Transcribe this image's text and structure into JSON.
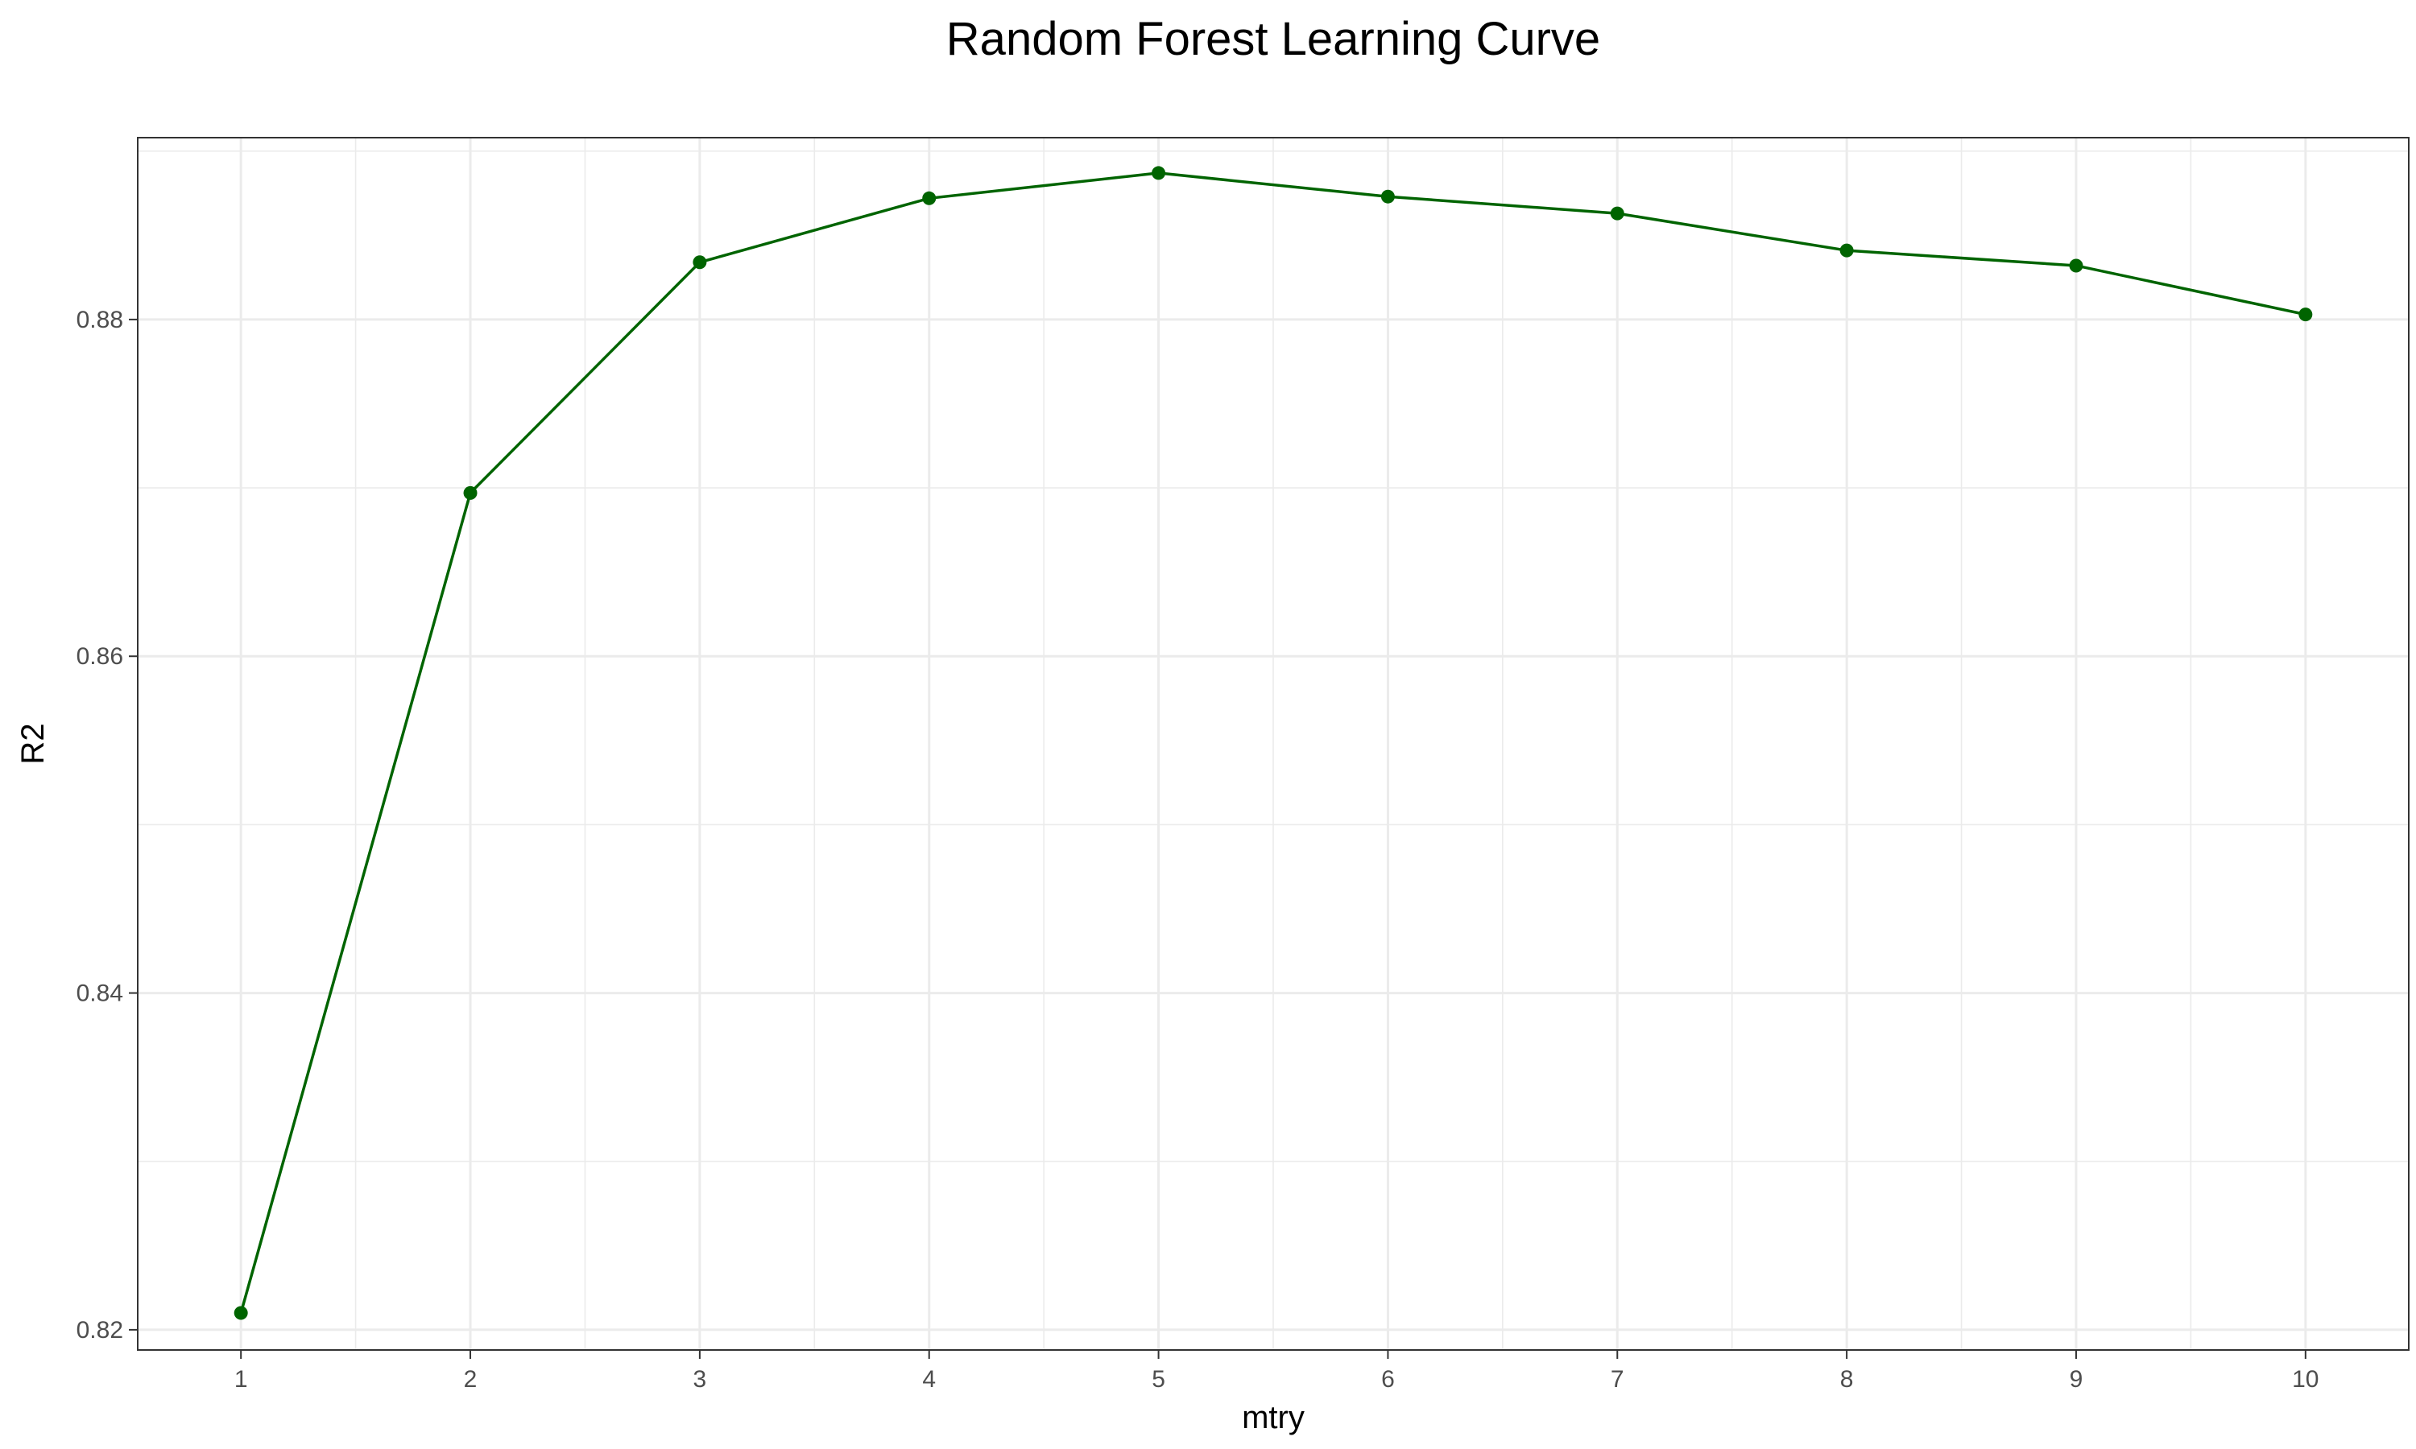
{
  "chart_data": {
    "type": "line",
    "title": "Random Forest Learning Curve",
    "xlabel": "mtry",
    "ylabel": "R2",
    "x": [
      1,
      2,
      3,
      4,
      5,
      6,
      7,
      8,
      9,
      10
    ],
    "series": [
      {
        "values": [
          0.821,
          0.8697,
          0.8834,
          0.8872,
          0.8887,
          0.8873,
          0.8863,
          0.8841,
          0.8832,
          0.8803
        ]
      }
    ],
    "xlim": [
      0.55,
      10.45
    ],
    "ylim": [
      0.8188,
      0.8908
    ],
    "xticks": [
      1,
      2,
      3,
      4,
      5,
      6,
      7,
      8,
      9,
      10
    ],
    "yticks": [
      0.82,
      0.84,
      0.86,
      0.88
    ],
    "ytick_labels": [
      "0.82",
      "0.84",
      "0.86",
      "0.88"
    ],
    "grid": true,
    "legend": "none",
    "colors": {
      "series": "#006400",
      "grid": "#ebebeb",
      "border": "#333333"
    }
  }
}
